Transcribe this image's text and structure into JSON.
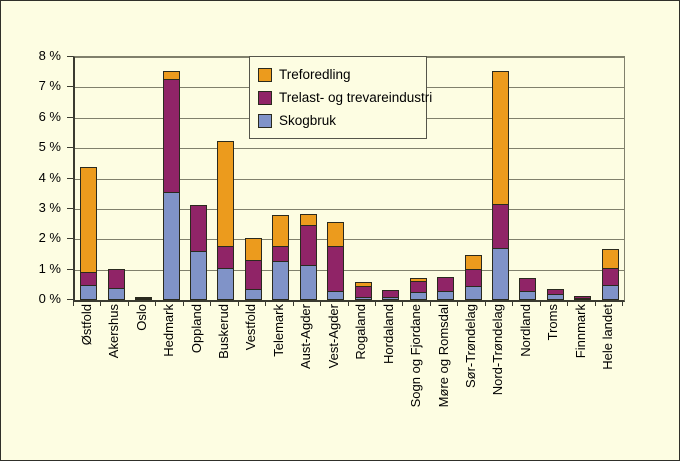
{
  "chart_data": {
    "type": "bar",
    "stacked": true,
    "title": "",
    "xlabel": "",
    "ylabel": "",
    "ylim": [
      0,
      8
    ],
    "grid": true,
    "legend_position": "top-center-overlay",
    "y_ticks": [
      "0 %",
      "1 %",
      "2 %",
      "3 %",
      "4 %",
      "5 %",
      "6 %",
      "7 %",
      "8 %"
    ],
    "categories": [
      "Østfold",
      "Akershus",
      "Oslo",
      "Hedmark",
      "Oppland",
      "Buskerud",
      "Vestfold",
      "Telemark",
      "Aust-Agder",
      "Vest-Agder",
      "Rogaland",
      "Hordaland",
      "Sogn og Fjordane",
      "Møre og Romsdal",
      "Sør-Trøndelag",
      "Nord-Trøndelag",
      "Nordland",
      "Troms",
      "Finnmark",
      "Hele landet"
    ],
    "series": [
      {
        "name": "Skogbruk",
        "color": "#8093c8",
        "values": [
          0.5,
          0.4,
          0.02,
          3.55,
          1.6,
          1.05,
          0.35,
          1.3,
          1.15,
          0.3,
          0.1,
          0.1,
          0.25,
          0.3,
          0.45,
          1.7,
          0.3,
          0.2,
          0.05,
          0.5
        ]
      },
      {
        "name": "Trelast- og trevareindustri",
        "color": "#902467",
        "values": [
          0.45,
          0.65,
          0.05,
          3.75,
          1.55,
          0.75,
          1.0,
          0.5,
          1.35,
          1.5,
          0.4,
          0.25,
          0.4,
          0.5,
          0.6,
          1.5,
          0.45,
          0.2,
          0.1,
          0.6
        ]
      },
      {
        "name": "Treforedling",
        "color": "#ec9b1d",
        "values": [
          3.5,
          0,
          0,
          0.3,
          0,
          3.5,
          0.75,
          1.05,
          0.4,
          0.85,
          0.15,
          0,
          0.15,
          0,
          0.5,
          4.4,
          0,
          0,
          0,
          0.65
        ]
      }
    ],
    "colors": {
      "background": "#fdfde2",
      "gridline": "#80806c",
      "axis": "#3a3a30",
      "bar_border": "#2a2a1e"
    }
  }
}
